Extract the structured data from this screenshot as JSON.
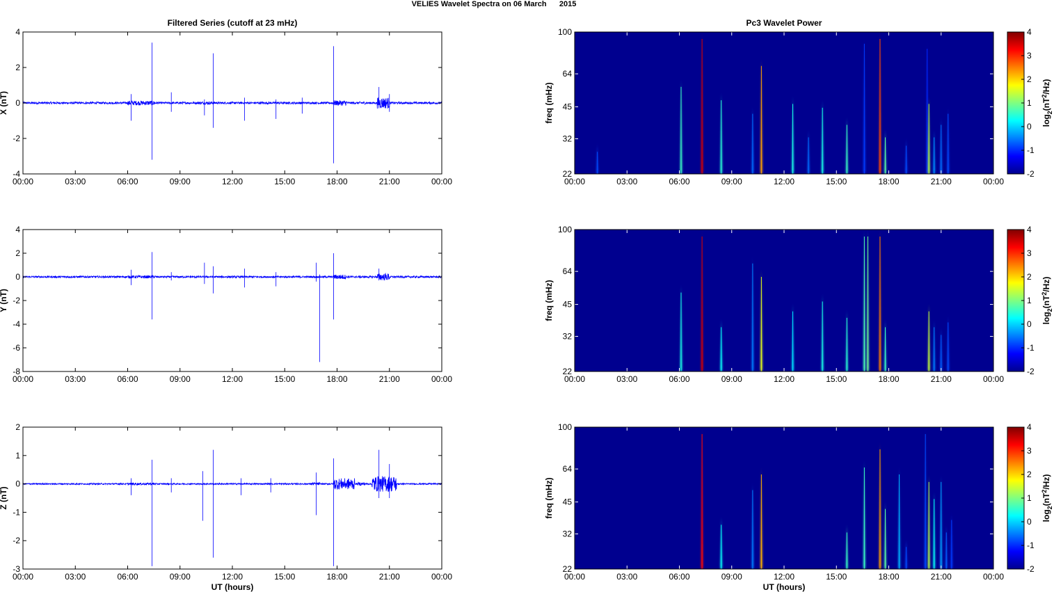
{
  "suptitle": "VELIES Wavelet Spectra on 06 March      2015",
  "colors": {
    "trace": "#0000ff",
    "background": "#00008f",
    "axis": "#000000"
  },
  "time_ticks": [
    "00:00",
    "03:00",
    "06:00",
    "09:00",
    "12:00",
    "15:00",
    "18:00",
    "21:00",
    "00:00"
  ],
  "chart_data": [
    {
      "type": "line",
      "title": "Filtered Series (cutoff at 23 mHz)",
      "ylabel": "X (nT)",
      "xlabel": "",
      "xlim": [
        0,
        24
      ],
      "ylim": [
        -4,
        4
      ],
      "yticks": [
        -4,
        -2,
        0,
        2,
        4
      ],
      "xticks": [
        "00:00",
        "03:00",
        "06:00",
        "09:00",
        "12:00",
        "15:00",
        "18:00",
        "21:00",
        "00:00"
      ],
      "noise": 0.06,
      "bursts": [
        [
          6.0,
          7.6,
          0.13
        ],
        [
          10.0,
          11.0,
          0.08
        ],
        [
          13.5,
          14.2,
          0.07
        ],
        [
          17.8,
          18.6,
          0.15
        ],
        [
          19.2,
          19.6,
          0.08
        ],
        [
          20.3,
          21.0,
          0.32
        ]
      ],
      "spikes": [
        [
          7.4,
          3.4,
          -3.2
        ],
        [
          10.9,
          2.8,
          -1.4
        ],
        [
          17.8,
          3.2,
          -3.4
        ],
        [
          6.2,
          0.5,
          -1.0
        ],
        [
          10.4,
          0.2,
          -0.7
        ],
        [
          12.7,
          0.3,
          -1.0
        ],
        [
          14.5,
          0.2,
          -0.9
        ],
        [
          16.0,
          0.3,
          -0.6
        ],
        [
          8.5,
          0.6,
          -0.5
        ],
        [
          20.4,
          0.9,
          -0.3
        ],
        [
          21.0,
          0.5,
          -0.5
        ]
      ]
    },
    {
      "type": "line",
      "title": "",
      "ylabel": "Y (nT)",
      "xlabel": "",
      "xlim": [
        0,
        24
      ],
      "ylim": [
        -8,
        4
      ],
      "yticks": [
        -8,
        -6,
        -4,
        -2,
        0,
        2,
        4
      ],
      "xticks": [
        "00:00",
        "03:00",
        "06:00",
        "09:00",
        "12:00",
        "15:00",
        "18:00",
        "21:00",
        "00:00"
      ],
      "noise": 0.08,
      "bursts": [
        [
          6.0,
          7.6,
          0.12
        ],
        [
          17.8,
          18.5,
          0.2
        ],
        [
          19.2,
          19.6,
          0.1
        ],
        [
          20.3,
          21.0,
          0.3
        ]
      ],
      "spikes": [
        [
          7.4,
          2.1,
          -3.6
        ],
        [
          10.4,
          1.2,
          -0.6
        ],
        [
          10.9,
          0.9,
          -1.4
        ],
        [
          12.7,
          0.7,
          -0.9
        ],
        [
          14.5,
          0.4,
          -0.8
        ],
        [
          16.8,
          1.2,
          -0.4
        ],
        [
          17.0,
          0.2,
          -7.2
        ],
        [
          17.8,
          2.0,
          -3.6
        ],
        [
          6.2,
          0.6,
          -0.7
        ],
        [
          8.5,
          0.4,
          -0.3
        ],
        [
          20.4,
          0.7,
          -0.3
        ]
      ]
    },
    {
      "type": "line",
      "title": "",
      "ylabel": "Z (nT)",
      "xlabel": "UT (hours)",
      "xlim": [
        0,
        24
      ],
      "ylim": [
        -3,
        2
      ],
      "yticks": [
        -3,
        -2,
        -1,
        0,
        1,
        2
      ],
      "xticks": [
        "00:00",
        "03:00",
        "06:00",
        "09:00",
        "12:00",
        "15:00",
        "18:00",
        "21:00",
        "00:00"
      ],
      "noise": 0.025,
      "bursts": [
        [
          6.0,
          7.6,
          0.04
        ],
        [
          16.5,
          17.0,
          0.05
        ],
        [
          17.8,
          19.0,
          0.2
        ],
        [
          19.2,
          19.6,
          0.06
        ],
        [
          20.0,
          21.4,
          0.28
        ]
      ],
      "spikes": [
        [
          7.4,
          0.85,
          -2.9
        ],
        [
          10.9,
          1.2,
          -2.6
        ],
        [
          10.3,
          0.45,
          -1.3
        ],
        [
          16.8,
          0.4,
          -1.1
        ],
        [
          17.8,
          0.9,
          -2.9
        ],
        [
          20.4,
          1.2,
          -0.5
        ],
        [
          21.0,
          0.7,
          -0.5
        ],
        [
          6.2,
          0.2,
          -0.4
        ],
        [
          8.5,
          0.2,
          -0.3
        ],
        [
          12.5,
          0.2,
          -0.4
        ],
        [
          14.2,
          0.2,
          -0.3
        ]
      ]
    },
    {
      "type": "heatmap",
      "title": "Pc3 Wavelet Power",
      "ylabel": "freq (mHz)",
      "xlabel": "",
      "xlim": [
        0,
        24
      ],
      "ylim": [
        22,
        100
      ],
      "yscale": "log",
      "yticks": [
        22,
        32,
        45,
        64,
        100
      ],
      "xticks": [
        "00:00",
        "03:00",
        "06:00",
        "09:00",
        "12:00",
        "15:00",
        "18:00",
        "21:00",
        "00:00"
      ],
      "colorbar": {
        "label": "log2(nT²/Hz)",
        "label_base": "log",
        "label_sub": "2",
        "label_unit": "(nT",
        "label_sup": "2",
        "label_end": "/Hz)",
        "range": [
          -2,
          4
        ],
        "ticks": [
          -2,
          -1,
          0,
          1,
          2,
          3,
          4
        ]
      },
      "ridges": [
        [
          1.3,
          30,
          -0.8
        ],
        [
          6.1,
          60,
          0.6
        ],
        [
          7.3,
          100,
          3.5
        ],
        [
          8.4,
          52,
          0.5
        ],
        [
          10.2,
          45,
          -0.6
        ],
        [
          10.7,
          75,
          2.3
        ],
        [
          12.5,
          50,
          0.4
        ],
        [
          13.4,
          35,
          -0.6
        ],
        [
          14.2,
          48,
          0.4
        ],
        [
          15.6,
          40,
          0.6
        ],
        [
          16.6,
          95,
          -0.9
        ],
        [
          17.5,
          100,
          2.8
        ],
        [
          17.8,
          35,
          0.8
        ],
        [
          19.0,
          32,
          -0.8
        ],
        [
          20.2,
          90,
          -1.0
        ],
        [
          20.3,
          50,
          1.3
        ],
        [
          20.6,
          35,
          -0.4
        ],
        [
          21.0,
          40,
          -0.6
        ],
        [
          21.4,
          45,
          -0.8
        ]
      ]
    },
    {
      "type": "heatmap",
      "title": "",
      "ylabel": "freq (mHz)",
      "xlabel": "",
      "xlim": [
        0,
        24
      ],
      "ylim": [
        22,
        100
      ],
      "yscale": "log",
      "yticks": [
        22,
        32,
        45,
        64,
        100
      ],
      "xticks": [
        "00:00",
        "03:00",
        "06:00",
        "09:00",
        "12:00",
        "15:00",
        "18:00",
        "21:00",
        "00:00"
      ],
      "colorbar": {
        "label": "log2(nT²/Hz)",
        "label_base": "log",
        "label_sub": "2",
        "label_unit": "(nT",
        "label_sup": "2",
        "label_end": "/Hz)",
        "range": [
          -2,
          4
        ],
        "ticks": [
          -2,
          -1,
          0,
          1,
          2,
          3,
          4
        ]
      },
      "ridges": [
        [
          6.1,
          55,
          0.4
        ],
        [
          7.3,
          100,
          3.5
        ],
        [
          8.4,
          38,
          0.3
        ],
        [
          10.2,
          75,
          -0.5
        ],
        [
          10.7,
          65,
          1.6
        ],
        [
          12.5,
          45,
          0.1
        ],
        [
          14.2,
          50,
          0.4
        ],
        [
          15.6,
          42,
          0.5
        ],
        [
          16.6,
          100,
          0.7
        ],
        [
          16.8,
          100,
          0.9
        ],
        [
          17.5,
          100,
          2.5
        ],
        [
          17.8,
          38,
          0.6
        ],
        [
          20.3,
          45,
          1.4
        ],
        [
          20.6,
          38,
          -0.5
        ],
        [
          21.0,
          35,
          -0.7
        ],
        [
          21.4,
          40,
          -0.8
        ]
      ]
    },
    {
      "type": "heatmap",
      "title": "",
      "ylabel": "freq (mHz)",
      "xlabel": "UT (hours)",
      "xlim": [
        0,
        24
      ],
      "ylim": [
        22,
        100
      ],
      "yscale": "log",
      "yticks": [
        22,
        32,
        45,
        64,
        100
      ],
      "xticks": [
        "00:00",
        "03:00",
        "06:00",
        "09:00",
        "12:00",
        "15:00",
        "18:00",
        "21:00",
        "00:00"
      ],
      "colorbar": {
        "label": "log2(nT²/Hz)",
        "label_base": "log",
        "label_sub": "2",
        "label_unit": "(nT",
        "label_sup": "2",
        "label_end": "/Hz)",
        "range": [
          -2,
          4
        ],
        "ticks": [
          -2,
          -1,
          0,
          1,
          2,
          3,
          4
        ]
      },
      "ridges": [
        [
          7.3,
          100,
          3.2
        ],
        [
          8.4,
          38,
          0.3
        ],
        [
          10.2,
          55,
          -0.5
        ],
        [
          10.7,
          65,
          2.2
        ],
        [
          15.6,
          35,
          0.6
        ],
        [
          16.6,
          70,
          0.6
        ],
        [
          17.5,
          85,
          2.3
        ],
        [
          17.8,
          45,
          0.8
        ],
        [
          18.6,
          65,
          -0.2
        ],
        [
          19.0,
          30,
          -0.8
        ],
        [
          20.1,
          100,
          -0.8
        ],
        [
          20.3,
          60,
          1.3
        ],
        [
          20.6,
          50,
          0.3
        ],
        [
          21.0,
          60,
          -0.3
        ],
        [
          21.3,
          35,
          -0.7
        ],
        [
          21.6,
          40,
          -0.9
        ]
      ]
    }
  ]
}
